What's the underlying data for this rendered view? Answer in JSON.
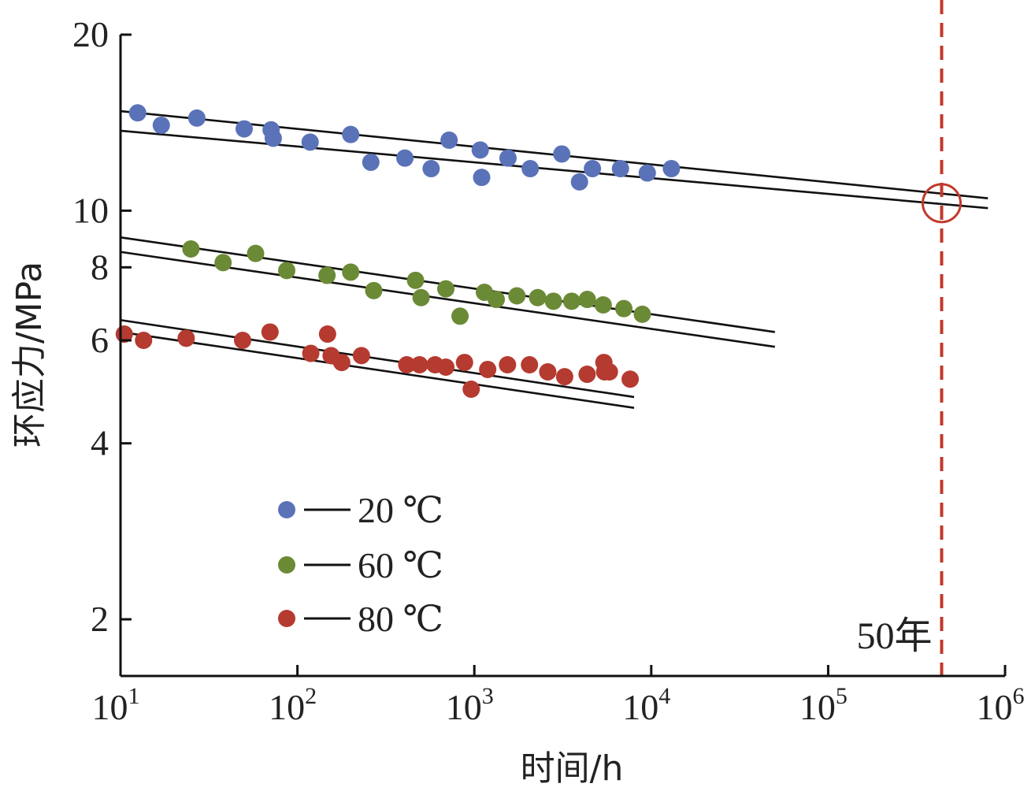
{
  "chart_data": {
    "type": "scatter",
    "xscale": "log",
    "yscale": "log",
    "xlabel": "时间/h",
    "ylabel": "环应力/MPa",
    "xlim": [
      10,
      1000000
    ],
    "ylim": [
      1.6,
      20
    ],
    "x_ticks": [
      {
        "value": 10,
        "base": "10",
        "exp": "1"
      },
      {
        "value": 100,
        "base": "10",
        "exp": "2"
      },
      {
        "value": 1000,
        "base": "10",
        "exp": "3"
      },
      {
        "value": 10000,
        "base": "10",
        "exp": "4"
      },
      {
        "value": 100000,
        "base": "10",
        "exp": "5"
      },
      {
        "value": 1000000,
        "base": "10",
        "exp": "6"
      }
    ],
    "y_ticks": [
      {
        "value": 2,
        "label": "2"
      },
      {
        "value": 4,
        "label": "4"
      },
      {
        "value": 6,
        "label": "6"
      },
      {
        "value": 8,
        "label": "8"
      },
      {
        "value": 10,
        "label": "10"
      },
      {
        "value": 20,
        "label": "20"
      }
    ],
    "legend_position": "bottom-left",
    "grid": false,
    "series": [
      {
        "name": "20 ℃",
        "color": "#5a72b8",
        "x": [
          12.5,
          17,
          27,
          50,
          71,
          73,
          118,
          200,
          260,
          405,
          570,
          720,
          1080,
          1100,
          1550,
          2070,
          3120,
          3930,
          4650,
          6700,
          9500,
          13000
        ],
        "y": [
          14.7,
          14.0,
          14.4,
          13.8,
          13.75,
          13.3,
          13.1,
          13.5,
          12.1,
          12.3,
          11.8,
          13.2,
          12.7,
          11.4,
          12.3,
          11.8,
          12.5,
          11.2,
          11.8,
          11.8,
          11.6,
          11.8
        ],
        "fit_lines": [
          {
            "x": [
              10,
              800000
            ],
            "y": [
              14.8,
              10.5
            ]
          },
          {
            "x": [
              10,
              800000
            ],
            "y": [
              13.7,
              10.1
            ]
          }
        ]
      },
      {
        "name": "60 ℃",
        "color": "#6b8a36",
        "x": [
          25,
          38,
          58,
          87,
          147,
          200,
          270,
          465,
          500,
          690,
          830,
          1140,
          1330,
          1740,
          2280,
          2800,
          3550,
          4350,
          5350,
          7000,
          8900
        ],
        "y": [
          8.6,
          8.15,
          8.45,
          7.9,
          7.75,
          7.85,
          7.3,
          7.6,
          7.1,
          7.35,
          6.6,
          7.25,
          7.05,
          7.15,
          7.1,
          7.0,
          7.0,
          7.05,
          6.9,
          6.8,
          6.65
        ],
        "fit_lines": [
          {
            "x": [
              10,
              50000
            ],
            "y": [
              9.0,
              6.2
            ]
          },
          {
            "x": [
              10,
              50000
            ],
            "y": [
              8.5,
              5.85
            ]
          }
        ]
      },
      {
        "name": "80 ℃",
        "color": "#b53a30",
        "x": [
          10.5,
          13.5,
          23.5,
          49,
          70,
          119,
          148,
          155,
          178,
          230,
          415,
          490,
          600,
          690,
          880,
          960,
          1190,
          1540,
          2050,
          2600,
          3240,
          4340,
          5400,
          5450,
          5800,
          7600
        ],
        "y": [
          6.15,
          6.0,
          6.05,
          6.0,
          6.2,
          5.7,
          6.15,
          5.65,
          5.5,
          5.65,
          5.45,
          5.45,
          5.45,
          5.4,
          5.5,
          4.95,
          5.35,
          5.45,
          5.45,
          5.3,
          5.2,
          5.25,
          5.5,
          5.3,
          5.3,
          5.15
        ],
        "fit_lines": [
          {
            "x": [
              10,
              8000
            ],
            "y": [
              6.5,
              4.8
            ]
          },
          {
            "x": [
              10,
              8000
            ],
            "y": [
              6.2,
              4.6
            ]
          }
        ]
      }
    ],
    "annotations": [
      {
        "type": "vline",
        "x": 438000,
        "style": "dashed",
        "color": "#c0392b",
        "label": "50年"
      },
      {
        "type": "circle-marker",
        "x": 438000,
        "y": 10.3,
        "color": "#c0392b"
      }
    ]
  }
}
